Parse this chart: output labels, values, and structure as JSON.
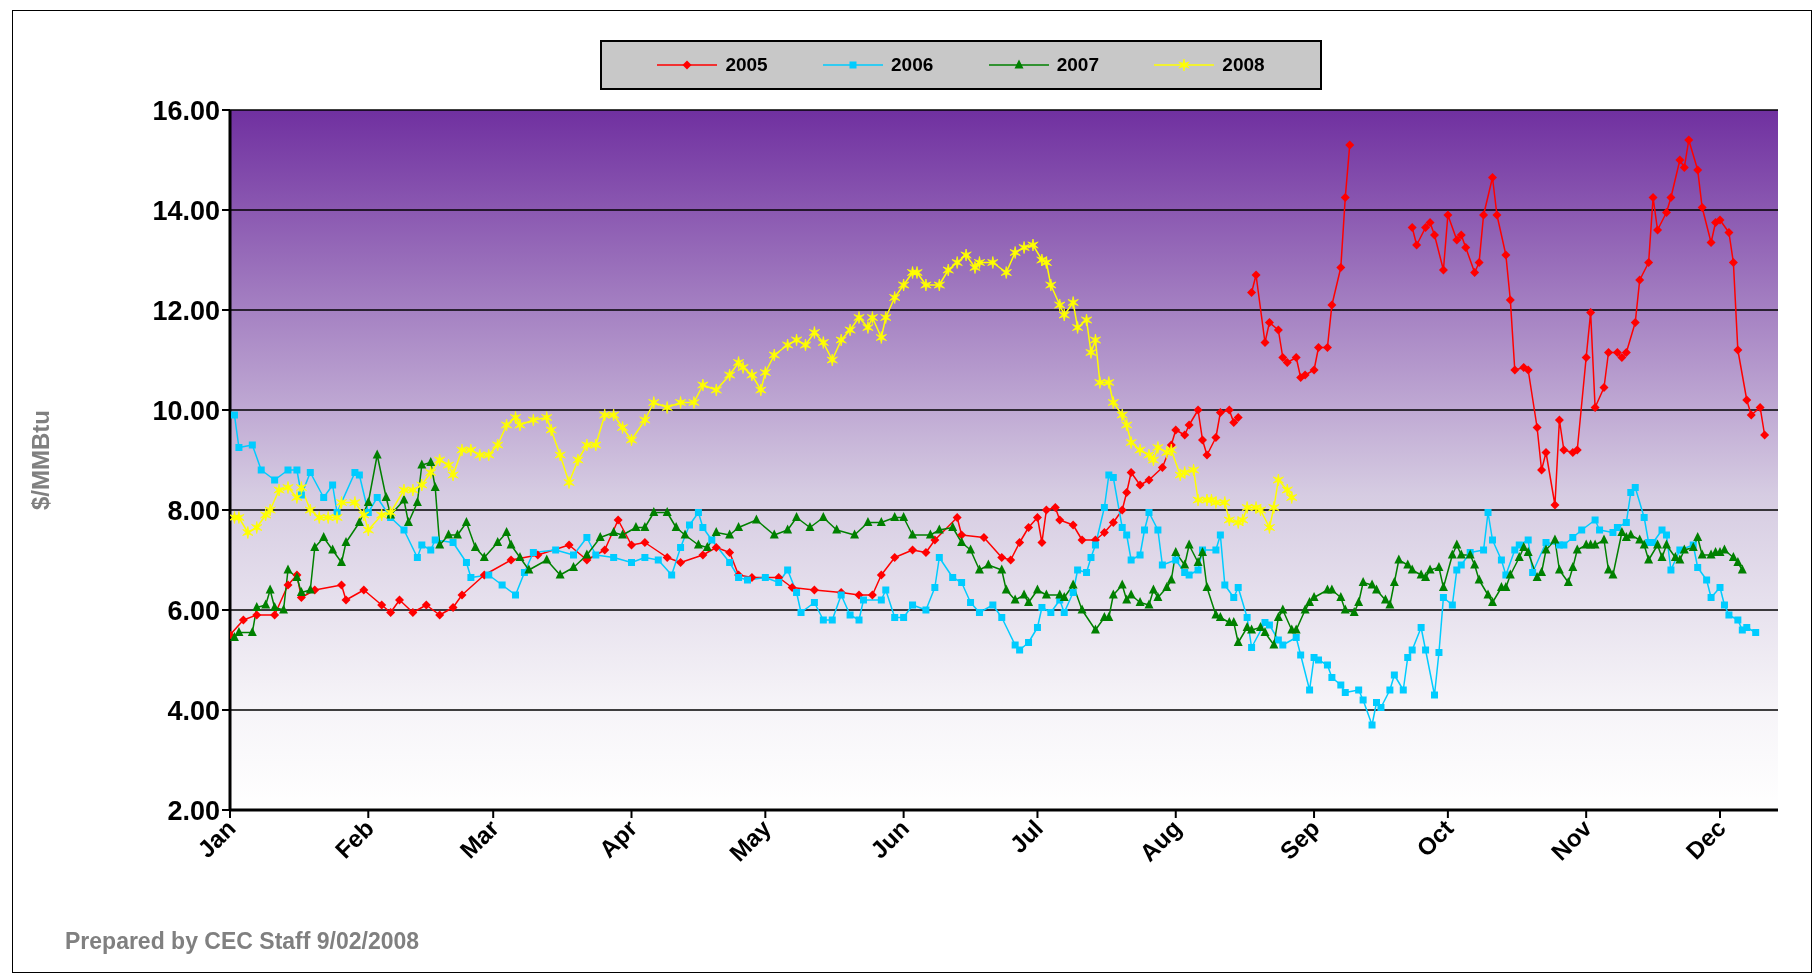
{
  "chart_data": {
    "type": "line",
    "ylabel": "$/MMBtu",
    "annotations": [
      "Prepared by CEC Staff 9/02/2008"
    ],
    "ylim": [
      2,
      16
    ],
    "yticks": [
      {
        "value": 2,
        "label": "2.00"
      },
      {
        "value": 4,
        "label": "4.00"
      },
      {
        "value": 6,
        "label": "6.00"
      },
      {
        "value": 8,
        "label": "8.00"
      },
      {
        "value": 10,
        "label": "10.00"
      },
      {
        "value": 12,
        "label": "12.00"
      },
      {
        "value": 14,
        "label": "14.00"
      },
      {
        "value": 16,
        "label": "16.00"
      }
    ],
    "xlim": [
      "--01-01",
      "--12-14"
    ],
    "xticks": [
      {
        "value": "--01-01",
        "label": "Jan"
      },
      {
        "value": "--02-01",
        "label": "Feb"
      },
      {
        "value": "--03-01",
        "label": "Mar"
      },
      {
        "value": "--04-01",
        "label": "Apr"
      },
      {
        "value": "--05-01",
        "label": "May"
      },
      {
        "value": "--06-01",
        "label": "Jun"
      },
      {
        "value": "--07-01",
        "label": "Jul"
      },
      {
        "value": "--08-01",
        "label": "Aug"
      },
      {
        "value": "--09-01",
        "label": "Sep"
      },
      {
        "value": "--10-01",
        "label": "Oct"
      },
      {
        "value": "--11-01",
        "label": "Nov"
      },
      {
        "value": "--12-01",
        "label": "Dec"
      }
    ],
    "grid": "y",
    "legend": "top",
    "line_style": "solid",
    "series": [
      {
        "name": "2005",
        "color": "#ff0000",
        "marker": "diamond",
        "x": [
          "--01-01",
          "--01-04",
          "--01-07",
          "--01-11",
          "--01-14",
          "--01-16",
          "--01-17",
          "--01-20",
          "--01-26",
          "--01-27",
          "--01-31",
          "--02-04",
          "--02-06",
          "--02-08",
          "--02-11",
          "--02-14",
          "--02-17",
          "--02-20",
          "--02-22",
          "--02-27",
          "--03-05",
          "--03-11",
          "--03-18",
          "--03-22",
          "--03-26",
          "--03-29",
          "--04-01",
          "--04-04",
          "--04-09",
          "--04-12",
          "--04-17",
          "--04-20",
          "--04-23",
          "--04-25",
          "--04-28",
          "--05-04",
          "--05-07",
          "--05-12",
          "--05-18",
          "--05-22",
          "--05-25",
          "--05-27",
          "--05-30",
          "--06-03",
          "--06-06",
          "--06-08",
          "--06-13",
          "--06-14",
          "--06-19",
          "--06-23",
          "--06-25",
          "--06-27",
          "--06-29",
          "--07-01",
          "--07-02",
          "--07-03",
          "--07-05",
          "--07-06",
          "--07-09",
          "--07-11",
          "--07-14",
          "--07-16",
          "--07-18",
          "--07-20",
          "--07-21",
          "--07-22",
          "--07-24",
          "--07-26",
          "--07-29",
          "--07-31",
          "--08-01",
          "--08-03",
          "--08-04",
          "--08-06",
          "--08-07",
          "--08-08",
          "--08-10",
          "--08-11",
          "--08-13",
          "--08-14",
          "--08-15",
          "--08-16",
          "--08-18",
          "--08-19",
          "--08-21",
          "--08-22",
          "--08-24",
          "--08-25",
          "--08-26",
          "--08-28",
          "--08-29",
          "--08-30",
          "--09-01",
          "--09-02",
          "--09-04",
          "--09-05",
          "--09-07",
          "--09-08",
          "--09-09",
          "--09-10",
          "--09-23",
          "--09-24",
          "--09-26",
          "--09-27",
          "--09-28",
          "--09-30",
          "--10-01",
          "--10-03",
          "--10-04",
          "--10-05",
          "--10-07",
          "--10-08",
          "--10-09",
          "--10-11",
          "--10-12",
          "--10-14",
          "--10-15",
          "--10-16",
          "--10-18",
          "--10-19",
          "--10-21",
          "--10-22",
          "--10-23",
          "--10-25",
          "--10-26",
          "--10-27",
          "--10-29",
          "--10-30",
          "--11-01",
          "--11-02",
          "--11-03",
          "--11-05",
          "--11-06",
          "--11-08",
          "--11-09",
          "--11-10",
          "--11-12",
          "--11-13",
          "--11-15",
          "--11-16",
          "--11-17",
          "--11-19",
          "--11-20",
          "--11-22",
          "--11-23",
          "--11-24",
          "--11-26",
          "--11-27",
          "--11-29",
          "--11-30",
          "--12-01",
          "--12-03",
          "--12-04",
          "--12-05",
          "--12-07",
          "--12-08",
          "--12-10",
          "--12-11"
        ],
        "values": [
          5.5,
          5.8,
          5.9,
          5.9,
          6.5,
          6.7,
          6.25,
          6.4,
          6.5,
          6.2,
          6.4,
          6.1,
          5.95,
          6.2,
          5.95,
          6.1,
          5.9,
          6.05,
          6.3,
          6.7,
          7.0,
          7.1,
          7.3,
          7.0,
          7.2,
          7.8,
          7.3,
          7.35,
          7.05,
          6.95,
          7.1,
          7.25,
          7.15,
          6.7,
          6.65,
          6.65,
          6.45,
          6.4,
          6.35,
          6.3,
          6.3,
          6.7,
          7.05,
          7.2,
          7.15,
          7.4,
          7.85,
          7.5,
          7.45,
          7.05,
          7.0,
          7.35,
          7.65,
          7.85,
          7.35,
          8.0,
          8.05,
          7.8,
          7.7,
          7.4,
          7.4,
          7.55,
          7.75,
          8.0,
          8.35,
          8.75,
          8.5,
          8.6,
          8.85,
          9.3,
          9.6,
          9.5,
          9.7,
          10.0,
          9.4,
          9.1,
          9.45,
          9.95,
          10.0,
          9.75,
          9.85,
          null,
          12.35,
          12.7,
          11.35,
          11.75,
          11.6,
          11.05,
          10.95,
          11.05,
          10.65,
          10.7,
          10.8,
          11.25,
          11.25,
          12.1,
          12.85,
          14.25,
          15.3,
          null,
          13.65,
          13.3,
          13.65,
          13.75,
          13.5,
          12.8,
          13.9,
          13.4,
          13.5,
          13.25,
          12.75,
          12.95,
          13.9,
          14.65,
          13.9,
          13.1,
          12.2,
          10.8,
          10.85,
          10.8,
          9.65,
          8.8,
          9.15,
          8.1,
          9.8,
          9.2,
          9.15,
          9.2,
          11.05,
          11.95,
          10.05,
          10.45,
          11.15,
          11.15,
          11.05,
          11.15,
          11.75,
          12.6,
          12.95,
          14.25,
          13.6,
          13.95,
          14.25,
          15.0,
          14.85,
          15.4,
          14.8,
          14.05,
          13.35,
          13.75,
          13.8,
          13.55,
          12.95,
          11.2,
          10.2,
          9.9,
          10.05,
          9.5
        ]
      },
      {
        "name": "2006",
        "color": "#00ccff",
        "marker": "square",
        "x": [
          "--01-02",
          "--01-03",
          "--01-06",
          "--01-08",
          "--01-11",
          "--01-14",
          "--01-16",
          "--01-17",
          "--01-19",
          "--01-22",
          "--01-24",
          "--01-25",
          "--01-29",
          "--01-30",
          "--02-01",
          "--02-03",
          "--02-06",
          "--02-09",
          "--02-12",
          "--02-13",
          "--02-15",
          "--02-16",
          "--02-20",
          "--02-23",
          "--02-24",
          "--02-28",
          "--03-03",
          "--03-06",
          "--03-08",
          "--03-10",
          "--03-15",
          "--03-19",
          "--03-22",
          "--03-24",
          "--03-28",
          "--04-01",
          "--04-04",
          "--04-07",
          "--04-10",
          "--04-12",
          "--04-14",
          "--04-16",
          "--04-17",
          "--04-19",
          "--04-23",
          "--04-25",
          "--04-27",
          "--05-01",
          "--05-04",
          "--05-06",
          "--05-08",
          "--05-09",
          "--05-12",
          "--05-14",
          "--05-16",
          "--05-18",
          "--05-20",
          "--05-22",
          "--05-23",
          "--05-27",
          "--05-28",
          "--05-30",
          "--06-01",
          "--06-03",
          "--06-06",
          "--06-08",
          "--06-09",
          "--06-12",
          "--06-14",
          "--06-16",
          "--06-18",
          "--06-21",
          "--06-23",
          "--06-26",
          "--06-27",
          "--06-29",
          "--07-01",
          "--07-02",
          "--07-04",
          "--07-06",
          "--07-07",
          "--07-09",
          "--07-10",
          "--07-12",
          "--07-13",
          "--07-14",
          "--07-16",
          "--07-17",
          "--07-18",
          "--07-20",
          "--07-21",
          "--07-22",
          "--07-24",
          "--07-25",
          "--07-26",
          "--07-28",
          "--07-29",
          "--08-01",
          "--08-03",
          "--08-04",
          "--08-06",
          "--08-07",
          "--08-10",
          "--08-11",
          "--08-12",
          "--08-14",
          "--08-15",
          "--08-17",
          "--08-18",
          "--08-21",
          "--08-22",
          "--08-24",
          "--08-25",
          "--08-28",
          "--08-29",
          "--08-31",
          "--09-01",
          "--09-02",
          "--09-04",
          "--09-05",
          "--09-07",
          "--09-08",
          "--09-11",
          "--09-12",
          "--09-14",
          "--09-15",
          "--09-16",
          "--09-18",
          "--09-19",
          "--09-21",
          "--09-22",
          "--09-23",
          "--09-25",
          "--09-26",
          "--09-28",
          "--09-29",
          "--09-30",
          "--10-02",
          "--10-03",
          "--10-04",
          "--10-06",
          "--10-09",
          "--10-10",
          "--10-11",
          "--10-13",
          "--10-14",
          "--10-16",
          "--10-17",
          "--10-19",
          "--10-20",
          "--10-23",
          "--10-26",
          "--10-27",
          "--10-29",
          "--10-31",
          "--11-03",
          "--11-04",
          "--11-07",
          "--11-08",
          "--11-10",
          "--11-11",
          "--11-12",
          "--11-14",
          "--11-15",
          "--11-16",
          "--11-18",
          "--11-19",
          "--11-20",
          "--11-22",
          "--11-25",
          "--11-26",
          "--11-28",
          "--11-29",
          "--12-01",
          "--12-02",
          "--12-03",
          "--12-05",
          "--12-06",
          "--12-07",
          "--12-09"
        ],
        "values": [
          9.9,
          9.25,
          9.3,
          8.8,
          8.6,
          8.8,
          8.8,
          8.3,
          8.75,
          8.25,
          8.5,
          7.95,
          8.75,
          8.7,
          7.95,
          8.25,
          7.85,
          7.6,
          7.05,
          7.3,
          7.2,
          7.4,
          7.35,
          6.95,
          6.65,
          6.7,
          6.5,
          6.3,
          6.75,
          7.15,
          7.2,
          7.1,
          7.45,
          7.1,
          7.05,
          6.95,
          7.05,
          7.0,
          6.7,
          7.25,
          7.7,
          7.95,
          7.65,
          7.4,
          6.95,
          6.65,
          6.6,
          6.65,
          6.55,
          6.8,
          6.35,
          5.95,
          6.15,
          5.8,
          5.8,
          6.3,
          5.9,
          5.8,
          6.2,
          6.2,
          6.4,
          5.85,
          5.85,
          6.1,
          6.0,
          6.45,
          7.05,
          6.65,
          6.55,
          6.15,
          5.95,
          6.1,
          5.85,
          5.3,
          5.2,
          5.35,
          5.65,
          6.05,
          5.95,
          6.2,
          5.95,
          6.35,
          6.8,
          6.75,
          7.05,
          7.3,
          8.05,
          8.7,
          8.65,
          7.65,
          7.5,
          7.0,
          7.1,
          7.6,
          7.95,
          7.6,
          6.9,
          7.0,
          6.75,
          6.7,
          6.8,
          7.2,
          7.2,
          7.5,
          6.5,
          6.25,
          6.45,
          5.85,
          5.25,
          5.75,
          5.7,
          5.4,
          5.3,
          5.45,
          5.1,
          4.4,
          5.05,
          5.0,
          4.9,
          4.65,
          4.5,
          4.35,
          4.4,
          4.2,
          3.7,
          4.15,
          4.05,
          4.4,
          4.7,
          4.4,
          5.05,
          5.2,
          5.65,
          5.2,
          4.3,
          5.15,
          6.25,
          6.1,
          6.8,
          6.9,
          7.15,
          7.2,
          7.95,
          7.4,
          7.0,
          6.7,
          7.2,
          7.3,
          7.4,
          6.75,
          7.35,
          7.3,
          7.3,
          7.45,
          7.6,
          7.8,
          7.6,
          7.55,
          7.65,
          7.75,
          8.35,
          8.45,
          7.85,
          7.35,
          7.35,
          7.6,
          7.5,
          6.8,
          7.2,
          7.3,
          6.85,
          6.6,
          6.25,
          6.45,
          6.1,
          5.9,
          5.8,
          5.6,
          5.65,
          5.55
        ]
      },
      {
        "name": "2007",
        "color": "#008000",
        "marker": "triangle",
        "x": [
          "--01-02",
          "--01-03",
          "--01-06",
          "--01-07",
          "--01-09",
          "--01-10",
          "--01-11",
          "--01-13",
          "--01-14",
          "--01-16",
          "--01-17",
          "--01-19",
          "--01-20",
          "--01-22",
          "--01-24",
          "--01-26",
          "--01-27",
          "--01-30",
          "--02-01",
          "--02-03",
          "--02-05",
          "--02-06",
          "--02-09",
          "--02-10",
          "--02-12",
          "--02-13",
          "--02-15",
          "--02-16",
          "--02-17",
          "--02-19",
          "--02-21",
          "--02-23",
          "--02-25",
          "--02-27",
          "--03-02",
          "--03-04",
          "--03-05",
          "--03-07",
          "--03-09",
          "--03-13",
          "--03-16",
          "--03-19",
          "--03-22",
          "--03-25",
          "--03-28",
          "--03-30",
          "--04-02",
          "--04-04",
          "--04-06",
          "--04-09",
          "--04-11",
          "--04-13",
          "--04-16",
          "--04-18",
          "--04-20",
          "--04-23",
          "--04-25",
          "--04-29",
          "--05-03",
          "--05-06",
          "--05-08",
          "--05-11",
          "--05-14",
          "--05-17",
          "--05-21",
          "--05-24",
          "--05-27",
          "--05-30",
          "--06-01",
          "--06-03",
          "--06-07",
          "--06-09",
          "--06-12",
          "--06-14",
          "--06-16",
          "--06-18",
          "--06-20",
          "--06-23",
          "--06-24",
          "--06-26",
          "--06-28",
          "--06-29",
          "--07-01",
          "--07-03",
          "--07-06",
          "--07-07",
          "--07-09",
          "--07-11",
          "--07-14",
          "--07-16",
          "--07-17",
          "--07-18",
          "--07-20",
          "--07-21",
          "--07-22",
          "--07-24",
          "--07-26",
          "--07-27",
          "--07-28",
          "--07-30",
          "--07-31",
          "--08-01",
          "--08-03",
          "--08-04",
          "--08-06",
          "--08-07",
          "--08-08",
          "--08-10",
          "--08-11",
          "--08-13",
          "--08-14",
          "--08-15",
          "--08-17",
          "--08-18",
          "--08-20",
          "--08-21",
          "--08-23",
          "--08-24",
          "--08-25",
          "--08-27",
          "--08-28",
          "--08-30",
          "--08-31",
          "--09-01",
          "--09-04",
          "--09-05",
          "--09-07",
          "--09-08",
          "--09-10",
          "--09-11",
          "--09-12",
          "--09-14",
          "--09-15",
          "--09-17",
          "--09-18",
          "--09-19",
          "--09-20",
          "--09-22",
          "--09-23",
          "--09-25",
          "--09-26",
          "--09-27",
          "--09-29",
          "--09-30",
          "--10-02",
          "--10-03",
          "--10-04",
          "--10-06",
          "--10-07",
          "--10-08",
          "--10-10",
          "--10-11",
          "--10-13",
          "--10-14",
          "--10-15",
          "--10-17",
          "--10-18",
          "--10-19",
          "--10-21",
          "--10-22",
          "--10-23",
          "--10-25",
          "--10-26",
          "--10-28",
          "--10-29",
          "--10-30",
          "--11-01",
          "--11-02",
          "--11-03",
          "--11-05",
          "--11-06",
          "--11-07",
          "--11-09",
          "--11-10",
          "--11-11",
          "--11-13",
          "--11-14",
          "--11-15",
          "--11-17",
          "--11-18",
          "--11-19",
          "--11-21",
          "--11-22",
          "--11-23",
          "--11-25",
          "--11-26",
          "--11-27",
          "--11-29",
          "--11-30",
          "--12-01",
          "--12-02",
          "--12-04",
          "--12-05",
          "--12-06"
        ],
        "values": [
          5.45,
          5.55,
          5.55,
          6.05,
          6.1,
          6.4,
          6.05,
          6.0,
          6.8,
          6.65,
          6.35,
          6.4,
          7.25,
          7.45,
          7.2,
          6.95,
          7.35,
          7.75,
          8.15,
          9.1,
          8.25,
          7.9,
          8.2,
          7.75,
          8.15,
          8.9,
          8.95,
          8.45,
          7.3,
          7.5,
          7.5,
          7.75,
          7.25,
          7.05,
          7.35,
          7.55,
          7.3,
          7.05,
          6.8,
          7.0,
          6.7,
          6.85,
          7.1,
          7.45,
          7.55,
          7.5,
          7.65,
          7.65,
          7.95,
          7.95,
          7.65,
          7.5,
          7.3,
          7.25,
          7.55,
          7.5,
          7.65,
          7.8,
          7.5,
          7.6,
          7.85,
          7.65,
          7.85,
          7.6,
          7.5,
          7.75,
          7.75,
          7.85,
          7.85,
          7.5,
          7.5,
          7.6,
          7.65,
          7.35,
          7.2,
          6.8,
          6.9,
          6.8,
          6.4,
          6.2,
          6.3,
          6.15,
          6.4,
          6.3,
          6.3,
          6.25,
          6.5,
          6.0,
          5.6,
          5.85,
          5.85,
          6.3,
          6.5,
          6.2,
          6.3,
          6.15,
          6.1,
          6.4,
          6.25,
          6.45,
          6.6,
          7.15,
          6.9,
          7.3,
          6.95,
          7.15,
          6.45,
          5.9,
          5.85,
          5.75,
          5.75,
          5.35,
          5.65,
          5.6,
          5.65,
          5.55,
          5.3,
          5.85,
          6.0,
          5.6,
          5.6,
          6.0,
          6.15,
          6.25,
          6.4,
          6.4,
          6.25,
          6.0,
          5.95,
          6.15,
          6.55,
          6.5,
          6.4,
          6.2,
          6.1,
          6.55,
          7.0,
          6.9,
          6.8,
          6.7,
          6.65,
          6.8,
          6.85,
          6.45,
          7.1,
          7.3,
          7.1,
          7.1,
          6.9,
          6.6,
          6.3,
          6.15,
          6.45,
          6.45,
          6.7,
          7.05,
          7.25,
          7.15,
          6.65,
          6.75,
          7.2,
          7.4,
          6.8,
          6.55,
          6.85,
          7.2,
          7.3,
          7.3,
          7.3,
          7.4,
          6.8,
          6.7,
          7.55,
          7.45,
          7.5,
          7.4,
          7.3,
          7.0,
          7.3,
          7.05,
          7.3,
          7.05,
          7.0,
          7.2,
          7.25,
          7.45,
          7.1,
          7.1,
          7.15,
          7.15,
          7.2,
          7.05,
          6.95,
          6.8
        ]
      },
      {
        "name": "2008",
        "color": "#ffff00",
        "marker": "cross",
        "x": [
          "--01-02",
          "--01-03",
          "--01-05",
          "--01-07",
          "--01-09",
          "--01-10",
          "--01-12",
          "--01-14",
          "--01-16",
          "--01-17",
          "--01-19",
          "--01-21",
          "--01-23",
          "--01-25",
          "--01-26",
          "--01-29",
          "--01-31",
          "--02-01",
          "--02-04",
          "--02-06",
          "--02-09",
          "--02-11",
          "--02-13",
          "--02-15",
          "--02-17",
          "--02-19",
          "--02-20",
          "--02-22",
          "--02-24",
          "--02-26",
          "--02-28",
          "--03-02",
          "--03-04",
          "--03-06",
          "--03-07",
          "--03-10",
          "--03-13",
          "--03-14",
          "--03-16",
          "--03-18",
          "--03-20",
          "--03-22",
          "--03-24",
          "--03-26",
          "--03-28",
          "--03-30",
          "--04-01",
          "--04-04",
          "--04-06",
          "--04-09",
          "--04-12",
          "--04-15",
          "--04-17",
          "--04-20",
          "--04-23",
          "--04-25",
          "--04-26",
          "--04-28",
          "--04-30",
          "--05-01",
          "--05-03",
          "--05-06",
          "--05-08",
          "--05-10",
          "--05-12",
          "--05-14",
          "--05-16",
          "--05-18",
          "--05-20",
          "--05-22",
          "--05-24",
          "--05-25",
          "--05-27",
          "--05-28",
          "--05-30",
          "--06-01",
          "--06-03",
          "--06-04",
          "--06-06",
          "--06-09",
          "--06-11",
          "--06-13",
          "--06-15",
          "--06-17",
          "--06-18",
          "--06-21",
          "--06-24",
          "--06-26",
          "--06-28",
          "--06-30",
          "--07-02",
          "--07-03",
          "--07-04",
          "--07-06",
          "--07-07",
          "--07-09",
          "--07-10",
          "--07-12",
          "--07-13",
          "--07-14",
          "--07-15",
          "--07-17",
          "--07-18",
          "--07-20",
          "--07-21",
          "--07-22",
          "--07-24",
          "--07-26",
          "--07-27",
          "--07-28",
          "--07-30",
          "--07-31",
          "--08-02",
          "--08-03",
          "--08-05",
          "--08-06",
          "--08-08",
          "--08-09",
          "--08-10",
          "--08-12",
          "--08-13",
          "--08-15",
          "--08-16",
          "--08-17",
          "--08-19",
          "--08-20",
          "--08-22",
          "--08-23",
          "--08-24",
          "--08-26",
          "--08-27"
        ],
        "values": [
          7.85,
          7.85,
          7.55,
          7.65,
          7.9,
          8.0,
          8.4,
          8.45,
          8.25,
          8.45,
          8.0,
          7.85,
          7.85,
          7.85,
          8.15,
          8.15,
          7.9,
          7.6,
          7.9,
          7.95,
          8.4,
          8.4,
          8.5,
          8.75,
          9.0,
          8.9,
          8.7,
          9.2,
          9.2,
          9.1,
          9.1,
          9.3,
          9.7,
          9.85,
          9.7,
          9.8,
          9.85,
          9.6,
          9.1,
          8.55,
          9.0,
          9.3,
          9.3,
          9.9,
          9.9,
          9.65,
          9.4,
          9.8,
          10.15,
          10.05,
          10.15,
          10.15,
          10.5,
          10.4,
          10.7,
          10.95,
          10.85,
          10.7,
          10.4,
          10.75,
          11.1,
          11.3,
          11.4,
          11.3,
          11.55,
          11.35,
          11.0,
          11.4,
          11.6,
          11.85,
          11.65,
          11.85,
          11.45,
          11.85,
          12.25,
          12.5,
          12.75,
          12.75,
          12.5,
          12.5,
          12.8,
          12.95,
          13.1,
          12.85,
          12.95,
          12.95,
          12.75,
          13.15,
          13.25,
          13.3,
          13.0,
          12.95,
          12.5,
          12.1,
          11.9,
          12.15,
          11.65,
          11.8,
          11.15,
          11.4,
          10.55,
          10.55,
          10.15,
          9.9,
          9.7,
          9.35,
          9.2,
          9.1,
          9.0,
          9.25,
          9.15,
          9.2,
          8.7,
          8.75,
          8.8,
          8.2,
          8.2,
          8.2,
          8.15,
          8.15,
          7.8,
          7.75,
          7.8,
          8.05,
          8.05,
          8.0,
          7.65,
          8.05,
          8.6,
          8.4,
          8.25
        ]
      }
    ]
  }
}
